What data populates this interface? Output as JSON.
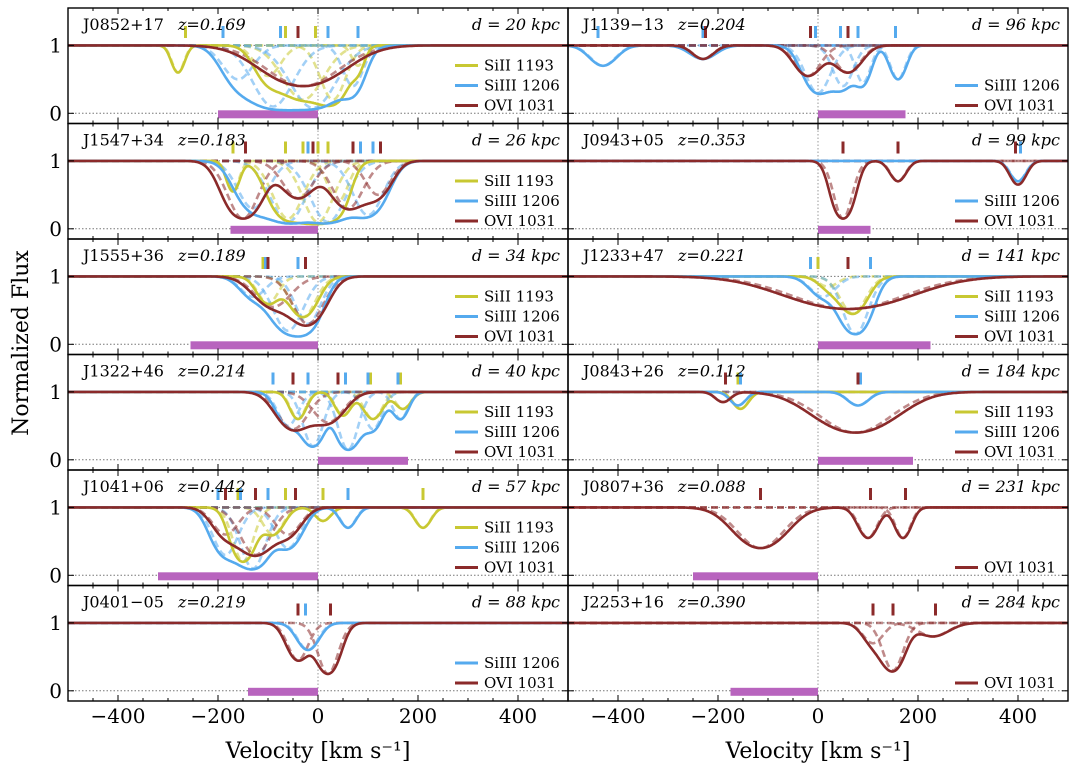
{
  "chart_data": {
    "type": "line",
    "ylabel": "Normalized Flux",
    "xlabel": "Velocity [km s⁻¹]",
    "xlim": [
      -500,
      500
    ],
    "ylim": [
      -0.15,
      1.55
    ],
    "xticks": [
      -400,
      -200,
      0,
      200,
      400
    ],
    "xtick_labels": [
      "−400",
      "−200",
      "0",
      "200",
      "400"
    ],
    "yticks": [
      0,
      1
    ],
    "ytick_labels": [
      "0",
      "1"
    ],
    "line_colors": {
      "SiII 1193": "#c8c832",
      "SiIII 1206": "#55aaee",
      "OVI 1031": "#8b2a2a"
    },
    "bar_color": "#b864be",
    "panels": [
      {
        "name": "J0852+17",
        "z": "z=0.169",
        "d": "d = 20 kpc",
        "column": 0,
        "row": 0,
        "legend": [
          "SiII 1193",
          "SiIII 1206",
          "OVI 1031"
        ],
        "ticks": [
          {
            "ion": "SiII 1193",
            "v": [
              -265,
              -65,
              -5
            ]
          },
          {
            "ion": "SiIII 1206",
            "v": [
              -190,
              -75,
              20,
              80
            ]
          },
          {
            "ion": "OVI 1031",
            "v": [
              -40
            ]
          }
        ],
        "range_bar": [
          -200,
          0
        ],
        "components": {
          "SiII 1193": [
            [
              -280,
              0.4,
              12
            ],
            [
              -100,
              0.45,
              25
            ],
            [
              -30,
              0.8,
              40
            ],
            [
              30,
              0.8,
              25
            ],
            [
              80,
              0.3,
              12
            ]
          ],
          "SiIII 1206": [
            [
              -160,
              0.5,
              30
            ],
            [
              -90,
              0.9,
              40
            ],
            [
              -10,
              0.92,
              45
            ],
            [
              70,
              0.6,
              20
            ]
          ],
          "OVI 1031": [
            [
              -30,
              0.6,
              70
            ]
          ]
        }
      },
      {
        "name": "J1547+34",
        "z": "z=0.183",
        "d": "d = 26 kpc",
        "column": 0,
        "row": 1,
        "legend": [
          "SiII 1193",
          "SiIII 1206",
          "OVI 1031"
        ],
        "ticks": [
          {
            "ion": "SiII 1193",
            "v": [
              -170,
              -65,
              -30,
              0,
              20
            ]
          },
          {
            "ion": "SiIII 1206",
            "v": [
              -20,
              85,
              110
            ]
          },
          {
            "ion": "OVI 1031",
            "v": [
              -145,
              -10,
              70,
              125
            ]
          }
        ],
        "range_bar": [
          -175,
          0
        ],
        "components": {
          "SiII 1193": [
            [
              -170,
              0.45,
              12
            ],
            [
              -60,
              0.85,
              30
            ],
            [
              0,
              0.9,
              30
            ],
            [
              40,
              0.6,
              20
            ]
          ],
          "SiIII 1206": [
            [
              -130,
              0.7,
              30
            ],
            [
              -60,
              0.9,
              35
            ],
            [
              20,
              0.9,
              35
            ],
            [
              100,
              0.8,
              30
            ]
          ],
          "OVI 1031": [
            [
              -150,
              0.85,
              30
            ],
            [
              -40,
              0.55,
              30
            ],
            [
              60,
              0.7,
              30
            ],
            [
              120,
              0.5,
              25
            ]
          ]
        }
      },
      {
        "name": "J1555+36",
        "z": "z=0.189",
        "d": "d = 34 kpc",
        "column": 0,
        "row": 2,
        "legend": [
          "SiII 1193",
          "SiIII 1206",
          "OVI 1031"
        ],
        "ticks": [
          {
            "ion": "SiII 1193",
            "v": [
              -110,
              -25
            ]
          },
          {
            "ion": "SiIII 1206",
            "v": [
              -105,
              -40
            ]
          },
          {
            "ion": "OVI 1031",
            "v": [
              -100,
              -25
            ]
          }
        ],
        "range_bar": [
          -255,
          0
        ],
        "components": {
          "SiII 1193": [
            [
              -100,
              0.4,
              20
            ],
            [
              -30,
              0.6,
              25
            ]
          ],
          "SiIII 1206": [
            [
              -130,
              0.3,
              25
            ],
            [
              -60,
              0.8,
              30
            ],
            [
              -20,
              0.7,
              25
            ]
          ],
          "OVI 1031": [
            [
              -90,
              0.45,
              35
            ],
            [
              -20,
              0.7,
              30
            ]
          ]
        }
      },
      {
        "name": "J1322+46",
        "z": "z=0.214",
        "d": "d = 40 kpc",
        "column": 0,
        "row": 3,
        "legend": [
          "SiII 1193",
          "SiIII 1206",
          "OVI 1031"
        ],
        "ticks": [
          {
            "ion": "SiII 1193",
            "v": [
              55,
              105,
              165
            ]
          },
          {
            "ion": "SiIII 1206",
            "v": [
              -90,
              -20,
              55,
              100,
              160
            ]
          },
          {
            "ion": "OVI 1031",
            "v": [
              -50,
              40
            ]
          }
        ],
        "range_bar": [
          0,
          180
        ],
        "components": {
          "SiII 1193": [
            [
              -40,
              0.4,
              15
            ],
            [
              50,
              0.35,
              15
            ],
            [
              110,
              0.4,
              18
            ],
            [
              170,
              0.25,
              15
            ]
          ],
          "SiIII 1206": [
            [
              -60,
              0.5,
              20
            ],
            [
              -10,
              0.8,
              20
            ],
            [
              60,
              0.85,
              20
            ],
            [
              110,
              0.55,
              18
            ],
            [
              165,
              0.4,
              15
            ]
          ],
          "OVI 1031": [
            [
              -50,
              0.55,
              30
            ],
            [
              20,
              0.45,
              30
            ]
          ]
        }
      },
      {
        "name": "J1041+06",
        "z": "z=0.442",
        "d": "d = 57 kpc",
        "column": 0,
        "row": 4,
        "legend": [
          "SiII 1193",
          "SiIII 1206",
          "OVI 1031"
        ],
        "ticks": [
          {
            "ion": "SiII 1193",
            "v": [
              -160,
              -65,
              10,
              210
            ]
          },
          {
            "ion": "SiIII 1206",
            "v": [
              -200,
              -155,
              -100,
              60
            ]
          },
          {
            "ion": "OVI 1031",
            "v": [
              -185,
              -125,
              -45
            ]
          }
        ],
        "range_bar": [
          -320,
          0
        ],
        "components": {
          "SiII 1193": [
            [
              -150,
              0.8,
              20
            ],
            [
              -90,
              0.4,
              20
            ],
            [
              10,
              0.2,
              15
            ],
            [
              210,
              0.3,
              15
            ]
          ],
          "SiIII 1206": [
            [
              -185,
              0.7,
              25
            ],
            [
              -130,
              0.9,
              25
            ],
            [
              -60,
              0.6,
              25
            ],
            [
              60,
              0.3,
              15
            ]
          ],
          "OVI 1031": [
            [
              -185,
              0.4,
              25
            ],
            [
              -125,
              0.7,
              30
            ],
            [
              -60,
              0.4,
              25
            ]
          ]
        }
      },
      {
        "name": "J0401−05",
        "z": "z=0.219",
        "d": "d = 88 kpc",
        "column": 0,
        "row": 5,
        "legend": [
          "SiIII 1206",
          "OVI 1031"
        ],
        "ticks": [
          {
            "ion": "SiIII 1206",
            "v": [
              -25
            ]
          },
          {
            "ion": "OVI 1031",
            "v": [
              -40,
              25
            ]
          }
        ],
        "range_bar": [
          -140,
          0
        ],
        "components": {
          "SiIII 1206": [
            [
              -20,
              0.4,
              20
            ]
          ],
          "OVI 1031": [
            [
              -40,
              0.55,
              20
            ],
            [
              20,
              0.75,
              20
            ]
          ]
        }
      },
      {
        "name": "J1139−13",
        "z": "z=0.204",
        "d": "d = 96 kpc",
        "column": 1,
        "row": 0,
        "legend": [
          "SiIII 1206",
          "OVI 1031"
        ],
        "ticks": [
          {
            "ion": "SiIII 1206",
            "v": [
              -440,
              -230,
              -5,
              45,
              80,
              155
            ]
          },
          {
            "ion": "OVI 1031",
            "v": [
              -225,
              -15,
              60
            ]
          }
        ],
        "range_bar": [
          0,
          175
        ],
        "components": {
          "SiIII 1206": [
            [
              -430,
              0.3,
              25
            ],
            [
              -230,
              0.2,
              25
            ],
            [
              0,
              0.7,
              25
            ],
            [
              50,
              0.6,
              20
            ],
            [
              90,
              0.55,
              15
            ],
            [
              160,
              0.5,
              15
            ]
          ],
          "OVI 1031": [
            [
              -230,
              0.2,
              20
            ],
            [
              -20,
              0.45,
              25
            ],
            [
              60,
              0.4,
              25
            ]
          ]
        }
      },
      {
        "name": "J0943+05",
        "z": "z=0.353",
        "d": "d = 99 kpc",
        "column": 1,
        "row": 1,
        "legend": [
          "SiIII 1206",
          "OVI 1031"
        ],
        "ticks": [
          {
            "ion": "SiIII 1206",
            "v": [
              405
            ]
          },
          {
            "ion": "OVI 1031",
            "v": [
              50,
              160,
              395
            ]
          }
        ],
        "range_bar": [
          0,
          105
        ],
        "components": {
          "SiIII 1206": [
            [
              400,
              0.3,
              15
            ]
          ],
          "OVI 1031": [
            [
              50,
              0.85,
              18
            ],
            [
              160,
              0.3,
              15
            ],
            [
              400,
              0.35,
              15
            ]
          ]
        }
      },
      {
        "name": "J1233+47",
        "z": "z=0.221",
        "d": "d = 141 kpc",
        "column": 1,
        "row": 2,
        "legend": [
          "SiII 1193",
          "SiIII 1206",
          "OVI 1031"
        ],
        "ticks": [
          {
            "ion": "SiII 1193",
            "v": [
              0
            ]
          },
          {
            "ion": "SiIII 1206",
            "v": [
              -15,
              105
            ]
          },
          {
            "ion": "OVI 1031",
            "v": [
              60
            ]
          }
        ],
        "range_bar": [
          0,
          225
        ],
        "components": {
          "SiII 1193": [
            [
              20,
              0.15,
              20
            ],
            [
              70,
              0.55,
              25
            ]
          ],
          "SiIII 1206": [
            [
              10,
              0.3,
              25
            ],
            [
              75,
              0.85,
              25
            ]
          ],
          "OVI 1031": [
            [
              60,
              0.48,
              110
            ]
          ]
        }
      },
      {
        "name": "J0843+26",
        "z": "z=0.112",
        "d": "d = 184 kpc",
        "column": 1,
        "row": 3,
        "legend": [
          "SiII 1193",
          "SiIII 1206",
          "OVI 1031"
        ],
        "ticks": [
          {
            "ion": "SiII 1193",
            "v": [
              -160
            ]
          },
          {
            "ion": "SiIII 1206",
            "v": [
              -155,
              85
            ]
          },
          {
            "ion": "OVI 1031",
            "v": [
              -185,
              80
            ]
          }
        ],
        "range_bar": [
          0,
          190
        ],
        "components": {
          "SiII 1193": [
            [
              -155,
              0.25,
              15
            ]
          ],
          "SiIII 1206": [
            [
              -160,
              0.2,
              15
            ],
            [
              80,
              0.2,
              20
            ]
          ],
          "OVI 1031": [
            [
              -190,
              0.15,
              15
            ],
            [
              75,
              0.6,
              70
            ]
          ]
        }
      },
      {
        "name": "J0807+36",
        "z": "z=0.088",
        "d": "d = 231 kpc",
        "column": 1,
        "row": 4,
        "legend": [
          "OVI 1031"
        ],
        "ticks": [
          {
            "ion": "OVI 1031",
            "v": [
              -115,
              105,
              175
            ]
          }
        ],
        "range_bar": [
          -250,
          0
        ],
        "components": {
          "OVI 1031": [
            [
              -115,
              0.6,
              45
            ],
            [
              100,
              0.45,
              18
            ],
            [
              170,
              0.45,
              15
            ]
          ]
        }
      },
      {
        "name": "J2253+16",
        "z": "z=0.390",
        "d": "d = 284 kpc",
        "column": 1,
        "row": 5,
        "legend": [
          "OVI 1031"
        ],
        "ticks": [
          {
            "ion": "OVI 1031",
            "v": [
              110,
              150,
              235
            ]
          }
        ],
        "range_bar": [
          -175,
          0
        ],
        "components": {
          "OVI 1031": [
            [
              110,
              0.3,
              20
            ],
            [
              150,
              0.7,
              20
            ],
            [
              230,
              0.2,
              30
            ]
          ]
        }
      }
    ]
  }
}
